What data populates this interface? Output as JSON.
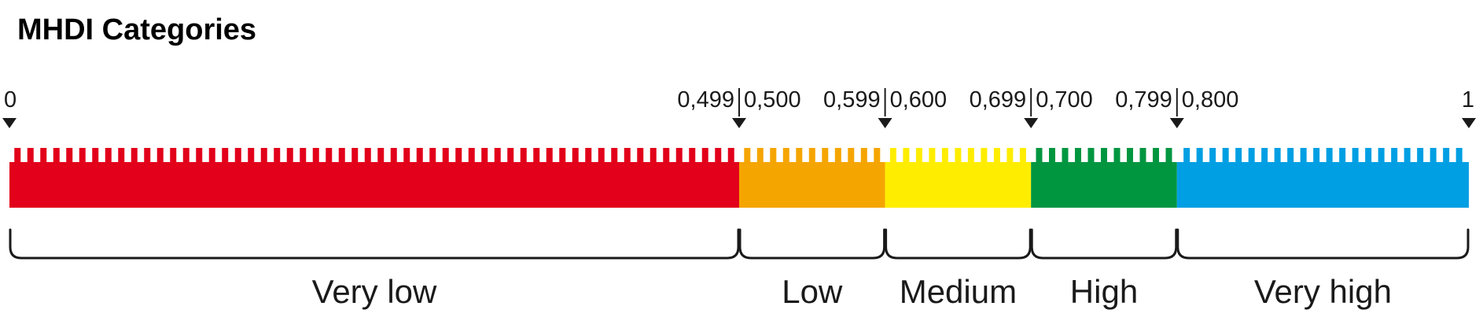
{
  "title": "MHDI Categories",
  "colors": {
    "very_low": "#e2001a",
    "low": "#f5a500",
    "medium": "#ffed00",
    "high": "#009640",
    "very_high": "#009fe3"
  },
  "scale": {
    "min": 0,
    "max": 1
  },
  "markers": [
    {
      "value": 0,
      "labels": [
        "0"
      ]
    },
    {
      "value": 0.5,
      "labels": [
        "0,499",
        "0,500"
      ]
    },
    {
      "value": 0.6,
      "labels": [
        "0,599",
        "0,600"
      ]
    },
    {
      "value": 0.7,
      "labels": [
        "0,699",
        "0,700"
      ]
    },
    {
      "value": 0.8,
      "labels": [
        "0,799",
        "0,800"
      ]
    },
    {
      "value": 1,
      "labels": [
        "1"
      ]
    }
  ],
  "categories": [
    {
      "name": "very-low",
      "label": "Very low",
      "from": 0,
      "to": 0.499,
      "color_key": "very_low"
    },
    {
      "name": "low",
      "label": "Low",
      "from": 0.5,
      "to": 0.599,
      "color_key": "low"
    },
    {
      "name": "medium",
      "label": "Medium",
      "from": 0.6,
      "to": 0.699,
      "color_key": "medium"
    },
    {
      "name": "high",
      "label": "High",
      "from": 0.7,
      "to": 0.799,
      "color_key": "high"
    },
    {
      "name": "very-high",
      "label": "Very high",
      "from": 0.8,
      "to": 1,
      "color_key": "very_high"
    }
  ]
}
